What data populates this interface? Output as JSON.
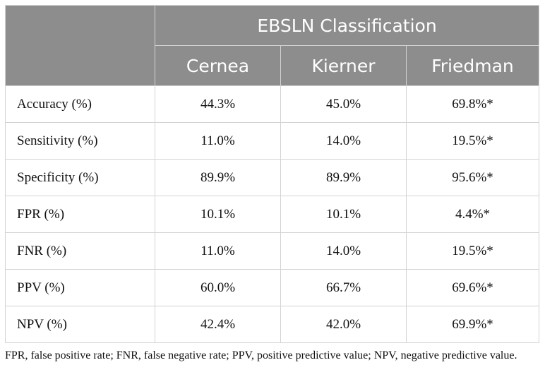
{
  "table": {
    "group_header": "EBSLN Classification",
    "columns": [
      "Cernea",
      "Kierner",
      "Friedman"
    ],
    "rows": [
      {
        "label": "Accuracy (%)",
        "values": [
          "44.3%",
          "45.0%",
          "69.8%*"
        ]
      },
      {
        "label": "Sensitivity (%)",
        "values": [
          "11.0%",
          "14.0%",
          "19.5%*"
        ]
      },
      {
        "label": "Specificity (%)",
        "values": [
          "89.9%",
          "89.9%",
          "95.6%*"
        ]
      },
      {
        "label": "FPR (%)",
        "values": [
          "10.1%",
          "10.1%",
          "4.4%*"
        ]
      },
      {
        "label": "FNR (%)",
        "values": [
          "11.0%",
          "14.0%",
          "19.5%*"
        ]
      },
      {
        "label": "PPV (%)",
        "values": [
          "60.0%",
          "66.7%",
          "69.6%*"
        ]
      },
      {
        "label": "NPV (%)",
        "values": [
          "42.4%",
          "42.0%",
          "69.9%*"
        ]
      }
    ]
  },
  "footnote": "FPR, false positive rate; FNR, false negative rate; PPV, positive predictive value; NPV, negative predictive value.",
  "colors": {
    "header_bg": "#8d8d8d",
    "header_text": "#ffffff",
    "border": "#d3d3d3"
  }
}
